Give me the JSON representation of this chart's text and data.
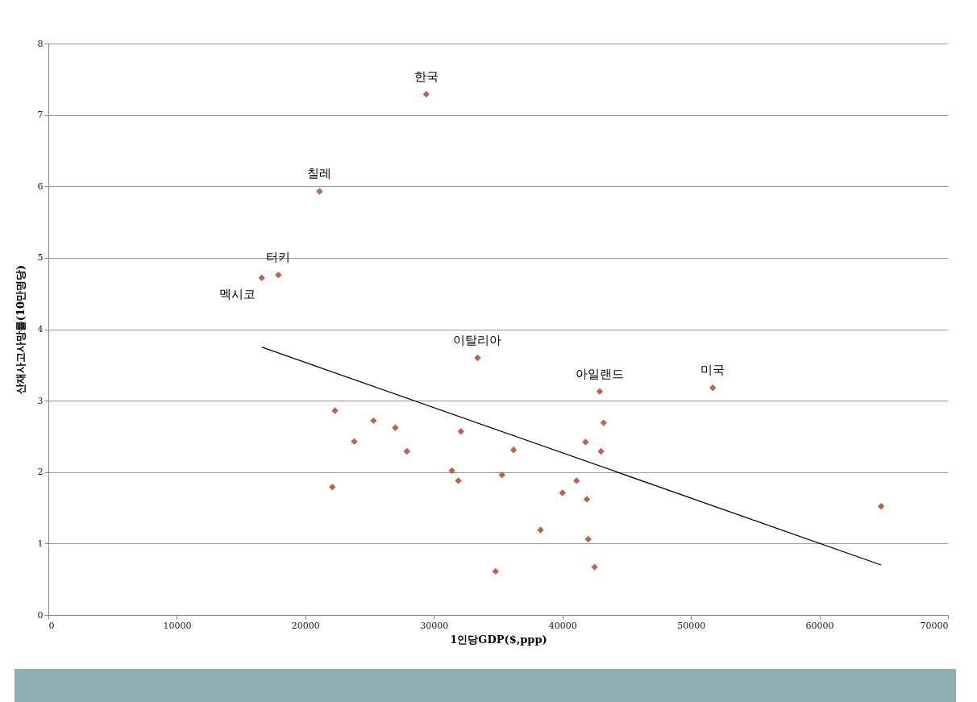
{
  "chart_data": {
    "type": "scatter",
    "xlabel": "1인당GDP($,ppp)",
    "ylabel": "산재사고사망률(10만명당)",
    "xlim": [
      0,
      70000
    ],
    "ylim": [
      0,
      8
    ],
    "xticks": [
      0,
      10000,
      20000,
      30000,
      40000,
      50000,
      60000,
      70000
    ],
    "yticks": [
      0,
      1,
      2,
      3,
      4,
      5,
      6,
      7,
      8
    ],
    "grid": "y",
    "series": [
      {
        "marker": "diamond",
        "color": "#c0614d",
        "x": [
          29400,
          21100,
          17900,
          16600,
          33400,
          42900,
          51700,
          22300,
          23800,
          25300,
          27000,
          27900,
          22100,
          32100,
          31400,
          31900,
          36200,
          35300,
          34800,
          38300,
          40000,
          41100,
          41800,
          41900,
          42000,
          42500,
          43000,
          43200,
          64800
        ],
        "values": [
          7.29,
          5.93,
          4.76,
          4.72,
          3.6,
          3.13,
          3.18,
          2.86,
          2.43,
          2.72,
          2.62,
          2.29,
          1.79,
          2.57,
          2.02,
          1.88,
          2.31,
          1.96,
          0.61,
          1.19,
          1.71,
          1.88,
          2.42,
          1.62,
          1.06,
          0.67,
          2.29,
          2.69,
          1.52
        ]
      },
      {
        "type": "line",
        "color": "#000000",
        "x": [
          16600,
          64800
        ],
        "values": [
          3.75,
          0.7
        ]
      }
    ],
    "annotations": [
      {
        "text": "한국",
        "x": 29400,
        "y": 7.29
      },
      {
        "text": "칠레",
        "x": 21100,
        "y": 5.93
      },
      {
        "text": "터키",
        "x": 17900,
        "y": 4.76
      },
      {
        "text": "멕시코",
        "x": 16600,
        "y": 4.72
      },
      {
        "text": "이탈리아",
        "x": 33400,
        "y": 3.6
      },
      {
        "text": "아일랜드",
        "x": 42900,
        "y": 3.13
      },
      {
        "text": "미국",
        "x": 51700,
        "y": 3.18
      }
    ]
  }
}
